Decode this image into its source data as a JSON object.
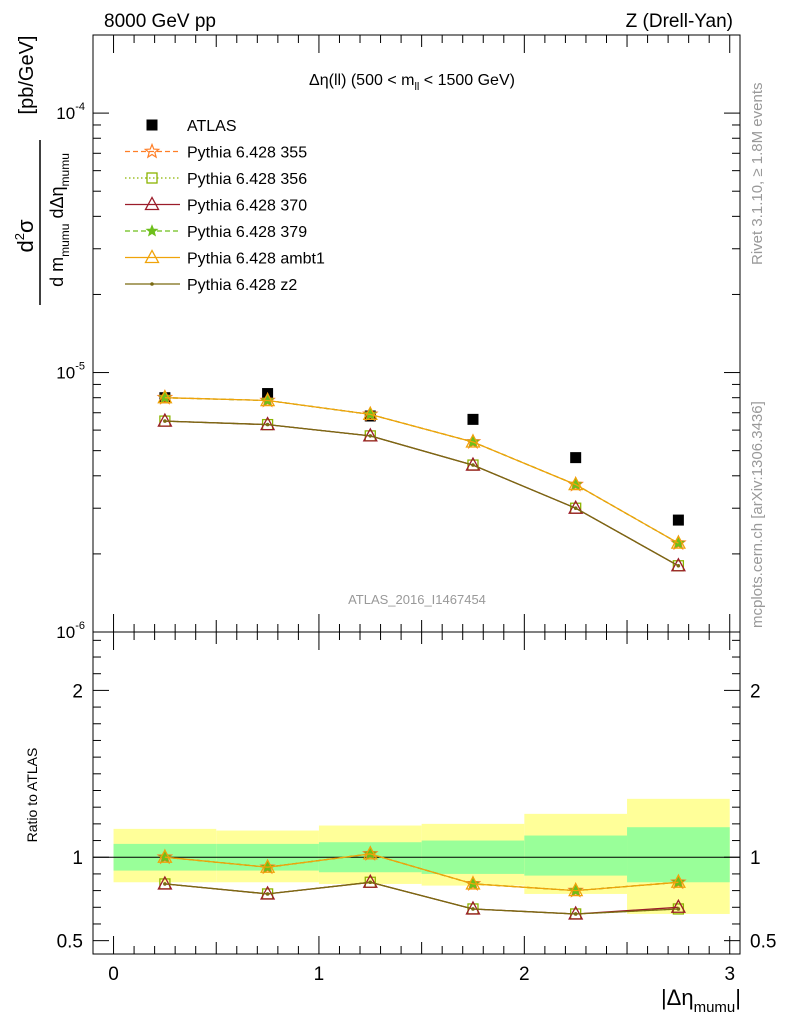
{
  "header": {
    "left": "8000 GeV pp",
    "right": "Z (Drell-Yan)"
  },
  "side_labels": {
    "rivet": "Rivet 3.1.10, ≥ 1.8M events",
    "mcplots": "mcplots.cern.ch [arXiv:1306.3436]"
  },
  "colors": {
    "data": "#000000",
    "p355": "#ff7f27",
    "p356": "#8cb400",
    "p370": "#9b1c2a",
    "p379": "#6dbf1b",
    "ambt1": "#f0a30a",
    "z2": "#7a6a12",
    "band_inner": "#99ff99",
    "band_outer": "#ffff99"
  },
  "chart_data": [
    {
      "type": "line",
      "title": "Δη(ll) (500 < m_ll < 1500 GeV)",
      "title_parts": {
        "prefix": "Δη(ll) (500 < m",
        "sub": "ll",
        "suffix": " < 1500 GeV)"
      },
      "ylabel": "d²σ / d m_mumu dΔη_mumu [pb/GeV]",
      "ylabel_parts": {
        "num": "d",
        "num_sup": "2",
        "num_tail": "σ",
        "den": "d m",
        "den_sub1": "mumu",
        "den_mid": " dΔη",
        "den_sub2": "mumu",
        "unit": "[pb/GeV]"
      },
      "yscale": "log",
      "ylim": [
        1e-06,
        0.0002
      ],
      "y_tick_labels": [
        "10",
        "10",
        "10"
      ],
      "y_tick_exps": [
        "-6",
        "-5",
        "-4"
      ],
      "y_tick_values": [
        1e-06,
        1e-05,
        0.0001
      ],
      "xlim": [
        -0.1,
        3.05
      ],
      "watermark": "ATLAS_2016_I1467454",
      "x": [
        0.25,
        0.75,
        1.25,
        1.75,
        2.25,
        2.75
      ],
      "series": [
        {
          "name": "ATLAS",
          "key": "data",
          "marker": "square",
          "line": "none",
          "values": [
            8e-06,
            8.3e-06,
            6.8e-06,
            6.6e-06,
            4.7e-06,
            2.7e-06
          ]
        },
        {
          "name": "Pythia 6.428 355",
          "key": "p355",
          "marker": "star-open",
          "line": "dashed",
          "values": [
            8e-06,
            7.8e-06,
            6.9e-06,
            5.4e-06,
            3.7e-06,
            2.2e-06
          ]
        },
        {
          "name": "Pythia 6.428 356",
          "key": "p356",
          "marker": "square-open",
          "line": "dotted",
          "values": [
            6.5e-06,
            6.3e-06,
            5.7e-06,
            4.4e-06,
            3e-06,
            1.8e-06
          ]
        },
        {
          "name": "Pythia 6.428 370",
          "key": "p370",
          "marker": "triangle-open",
          "line": "solid",
          "values": [
            6.5e-06,
            6.3e-06,
            5.7e-06,
            4.4e-06,
            3e-06,
            1.8e-06
          ]
        },
        {
          "name": "Pythia 6.428 379",
          "key": "p379",
          "marker": "star",
          "line": "dashed",
          "values": [
            8e-06,
            7.8e-06,
            6.9e-06,
            5.4e-06,
            3.7e-06,
            2.2e-06
          ]
        },
        {
          "name": "Pythia 6.428 ambt1",
          "key": "ambt1",
          "marker": "triangle-open",
          "line": "solid",
          "values": [
            8e-06,
            7.8e-06,
            6.9e-06,
            5.4e-06,
            3.7e-06,
            2.2e-06
          ]
        },
        {
          "name": "Pythia 6.428 z2",
          "key": "z2",
          "marker": "dot",
          "line": "solid",
          "values": [
            6.5e-06,
            6.3e-06,
            5.7e-06,
            4.4e-06,
            3e-06,
            1.8e-06
          ]
        }
      ]
    },
    {
      "type": "line",
      "ylabel": "Ratio to ATLAS",
      "xlabel": "|Δη_mumu|",
      "xlabel_parts": {
        "prefix": "|Δη",
        "sub": "mumu",
        "suffix": "|"
      },
      "ylim": [
        0.42,
        2.35
      ],
      "xlim": [
        -0.1,
        3.05
      ],
      "x_ticks": [
        0,
        1,
        2,
        3
      ],
      "x_tick_labels": [
        "0",
        "1",
        "2",
        "3"
      ],
      "y_ticks": [
        0.5,
        1,
        2
      ],
      "y_tick_labels": [
        "0.5",
        "1",
        "2"
      ],
      "x_edges": [
        0,
        0.5,
        1,
        1.5,
        2,
        2.5,
        3
      ],
      "band_inner": {
        "low": [
          0.92,
          0.92,
          0.91,
          0.9,
          0.89,
          0.85
        ],
        "high": [
          1.08,
          1.08,
          1.09,
          1.1,
          1.13,
          1.18
        ]
      },
      "band_outer": {
        "low": [
          0.85,
          0.85,
          0.84,
          0.83,
          0.78,
          0.66
        ],
        "high": [
          1.17,
          1.16,
          1.19,
          1.2,
          1.26,
          1.35
        ]
      },
      "x": [
        0.25,
        0.75,
        1.25,
        1.75,
        2.25,
        2.75
      ],
      "series": [
        {
          "name": "Pythia 6.428 355",
          "key": "p355",
          "marker": "star-open",
          "line": "dashed",
          "values": [
            1.0,
            0.94,
            1.02,
            0.84,
            0.8,
            0.85
          ]
        },
        {
          "name": "Pythia 6.428 356",
          "key": "p356",
          "marker": "square-open",
          "line": "dotted",
          "values": [
            0.84,
            0.78,
            0.85,
            0.69,
            0.66,
            0.69
          ]
        },
        {
          "name": "Pythia 6.428 370",
          "key": "p370",
          "marker": "triangle-open",
          "line": "solid",
          "values": [
            0.84,
            0.78,
            0.85,
            0.69,
            0.66,
            0.7
          ]
        },
        {
          "name": "Pythia 6.428 379",
          "key": "p379",
          "marker": "star",
          "line": "dashed",
          "values": [
            1.0,
            0.94,
            1.02,
            0.84,
            0.8,
            0.85
          ]
        },
        {
          "name": "Pythia 6.428 ambt1",
          "key": "ambt1",
          "marker": "triangle-open",
          "line": "solid",
          "values": [
            1.0,
            0.94,
            1.02,
            0.84,
            0.8,
            0.85
          ]
        },
        {
          "name": "Pythia 6.428 z2",
          "key": "z2",
          "marker": "dot",
          "line": "solid",
          "values": [
            0.84,
            0.78,
            0.85,
            0.69,
            0.66,
            0.69
          ]
        }
      ]
    }
  ]
}
